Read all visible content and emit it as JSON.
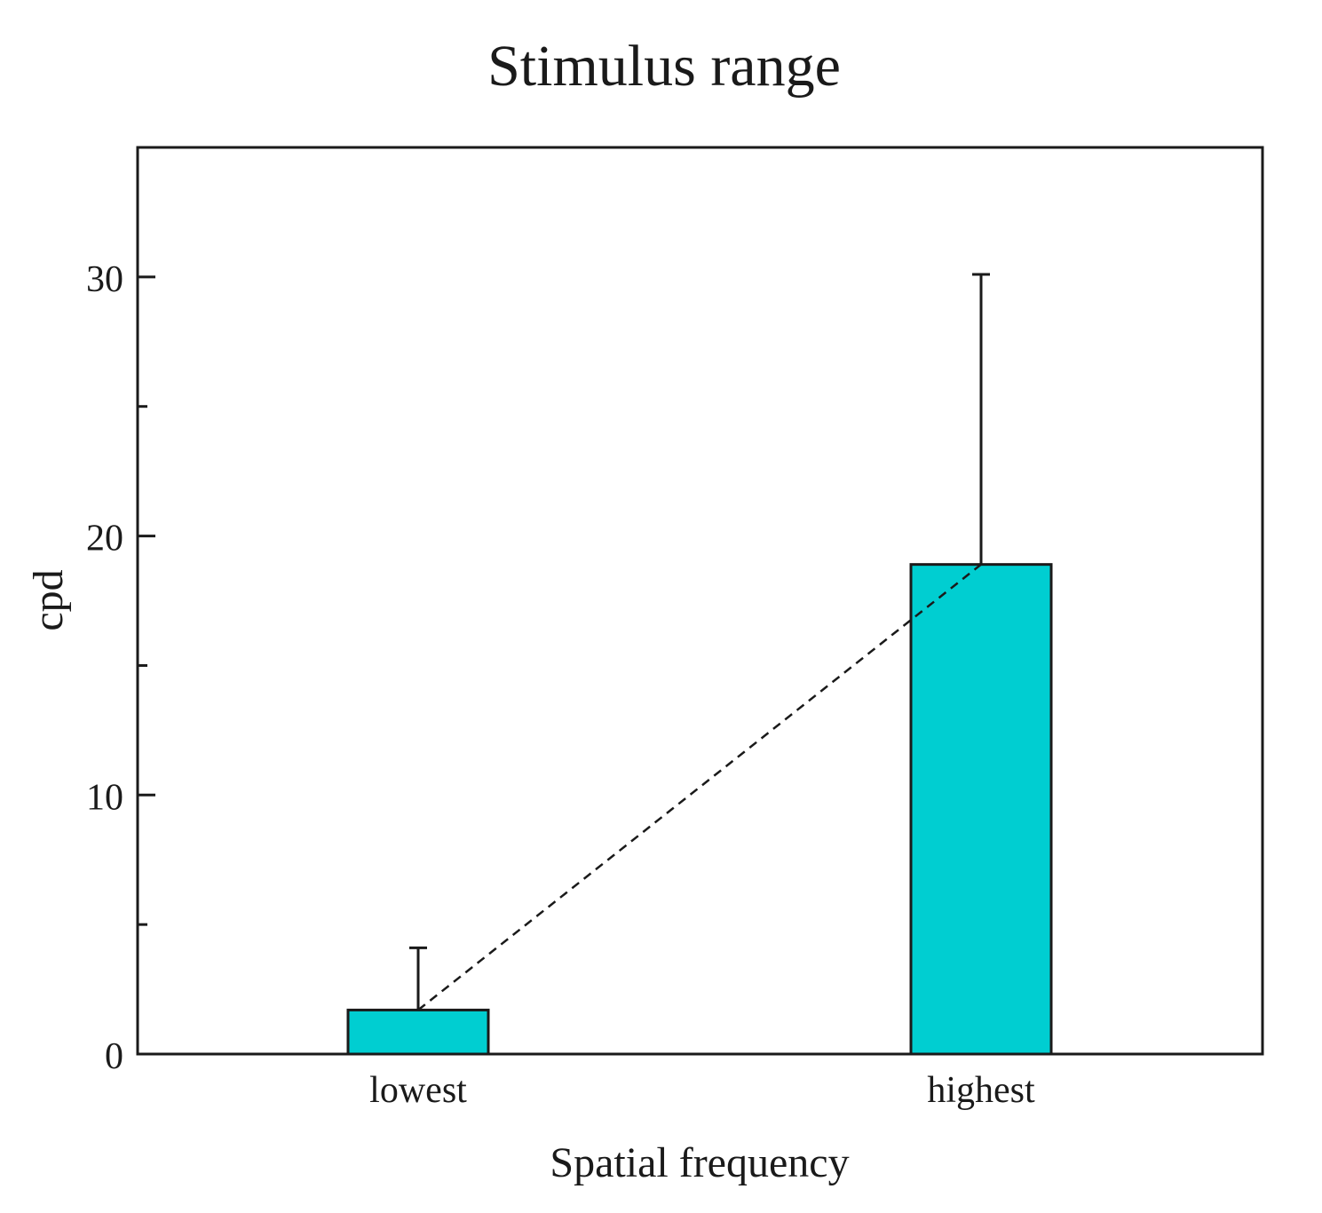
{
  "chart_data": {
    "type": "bar",
    "title": "Stimulus range",
    "xlabel": "Spatial frequency",
    "ylabel": "cpd",
    "categories": [
      "lowest",
      "highest"
    ],
    "values": [
      1.7,
      18.9
    ],
    "error_upper": [
      4.1,
      30.1
    ],
    "ylim": [
      0,
      35
    ],
    "yticks": [
      0,
      10,
      20,
      30
    ],
    "yticks_minor": [
      5,
      15,
      25
    ],
    "ytick_labels": [
      "0",
      "10",
      "20",
      "30"
    ],
    "bar_color": "#00CED1",
    "connector": "dashed line between bar tops",
    "grid": false,
    "legend": "none"
  }
}
